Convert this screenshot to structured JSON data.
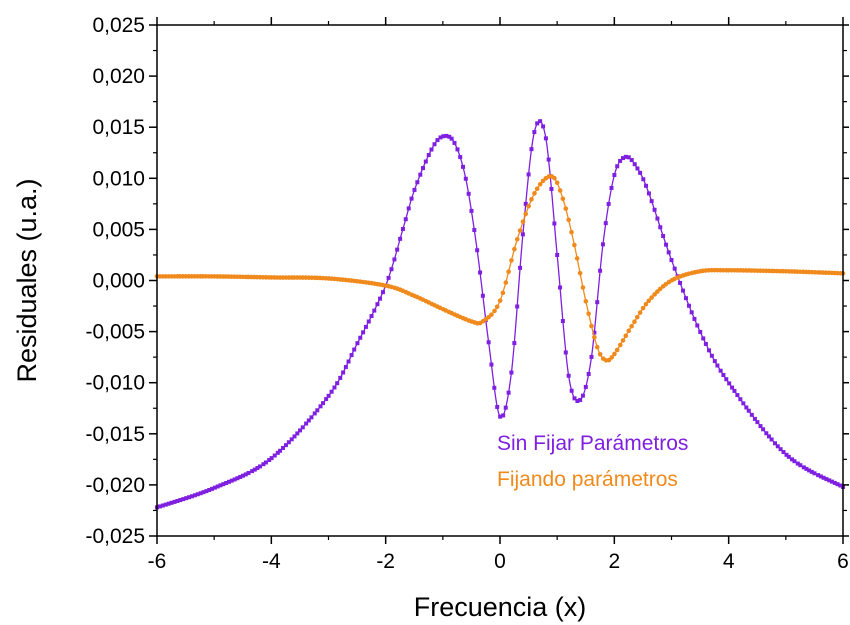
{
  "chart_data": {
    "type": "line",
    "xlabel": "Frecuencia (x)",
    "ylabel": "Residuales (u.a.)",
    "xlim": [
      -6,
      6
    ],
    "ylim": [
      -0.025,
      0.025
    ],
    "x_ticks": [
      -6,
      -4,
      -2,
      0,
      2,
      4,
      6
    ],
    "x_tick_labels": [
      "-6",
      "-4",
      "-2",
      "0",
      "2",
      "4",
      "6"
    ],
    "y_ticks": [
      -0.025,
      -0.02,
      -0.015,
      -0.01,
      -0.005,
      0,
      0.005,
      0.01,
      0.015,
      0.02,
      0.025
    ],
    "y_tick_labels": [
      "-0,025",
      "-0,020",
      "-0,015",
      "-0,010",
      "-0,005",
      "0,000",
      "0,005",
      "0,010",
      "0,015",
      "0,020",
      "0,025"
    ],
    "grid": false,
    "legend_position": "bottom-right",
    "series": [
      {
        "name": "Sin Fijar Parámetros",
        "color": "#7f1fe0",
        "marker": "square",
        "x": [
          -6.0,
          -5.0,
          -4.0,
          -3.0,
          -2.5,
          -2.0,
          -1.7,
          -1.5,
          -1.2,
          -1.0,
          -0.8,
          -0.6,
          -0.4,
          -0.2,
          0.0,
          0.2,
          0.4,
          0.6,
          0.8,
          1.0,
          1.2,
          1.4,
          1.6,
          1.8,
          2.0,
          2.2,
          2.4,
          2.6,
          3.0,
          3.5,
          4.0,
          5.0,
          6.0
        ],
        "y": [
          -0.0222,
          -0.0203,
          -0.0174,
          -0.0113,
          -0.0062,
          -0.0005,
          0.005,
          0.0088,
          0.0128,
          0.0141,
          0.0135,
          0.01,
          0.003,
          -0.006,
          -0.0133,
          -0.009,
          0.0045,
          0.0145,
          0.014,
          0.0025,
          -0.0093,
          -0.0117,
          -0.0075,
          0.0035,
          0.0103,
          0.0121,
          0.011,
          0.0086,
          0.002,
          -0.005,
          -0.01,
          -0.017,
          -0.0202
        ]
      },
      {
        "name": "Fijando parámetros",
        "color": "#f08a1c",
        "marker": "circle",
        "x": [
          -6.0,
          -5.0,
          -4.0,
          -3.0,
          -2.0,
          -1.5,
          -1.0,
          -0.5,
          -0.3,
          0.0,
          0.3,
          0.6,
          0.9,
          1.1,
          1.3,
          1.5,
          1.7,
          1.85,
          2.0,
          2.3,
          2.6,
          3.0,
          3.5,
          4.0,
          5.0,
          6.0
        ],
        "y": [
          0.0004,
          0.0004,
          0.0003,
          0.0002,
          -0.0005,
          -0.0015,
          -0.0028,
          -0.004,
          -0.004,
          -0.002,
          0.004,
          0.0085,
          0.0102,
          0.008,
          0.0035,
          -0.002,
          -0.0065,
          -0.0078,
          -0.0072,
          -0.0045,
          -0.002,
          0.0,
          0.0009,
          0.001,
          0.0009,
          0.0007
        ]
      }
    ]
  }
}
